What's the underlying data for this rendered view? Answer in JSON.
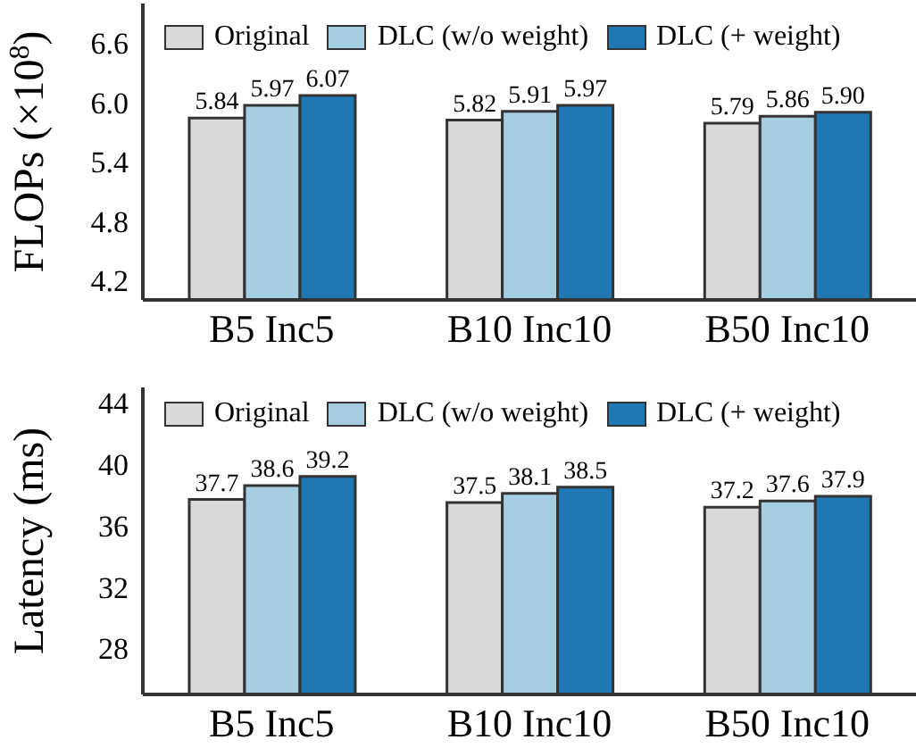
{
  "chart_data": [
    {
      "type": "bar",
      "ylabel": "FLOPs (×10$^{8}$)",
      "categories": [
        "B5 Inc5",
        "B10 Inc10",
        "B50 Inc10"
      ],
      "ylim": [
        4.0,
        7.0
      ],
      "yticks": [
        4.2,
        4.8,
        5.4,
        {
          "value": 6.0,
          "label": "6.0"
        },
        6.6
      ],
      "grid": false,
      "legend": "top",
      "series": [
        {
          "name": "Original",
          "color": "#d9d9d9",
          "values": [
            5.84,
            5.82,
            5.79
          ],
          "value_labels": [
            "5.84",
            "5.82",
            "5.79"
          ]
        },
        {
          "name": "DLC (w/o weight)",
          "color": "#a6cee3",
          "values": [
            5.97,
            5.91,
            5.86
          ],
          "value_labels": [
            "5.97",
            "5.91",
            "5.86"
          ]
        },
        {
          "name": "DLC (+ weight)",
          "color": "#1f78b4",
          "values": [
            6.07,
            5.97,
            5.9
          ],
          "value_labels": [
            "6.07",
            "5.97",
            "5.90"
          ]
        }
      ]
    },
    {
      "type": "bar",
      "ylabel": "Latency (ms)",
      "categories": [
        "B5 Inc5",
        "B10 Inc10",
        "B50 Inc10"
      ],
      "ylim": [
        25,
        45
      ],
      "yticks": [
        28,
        32,
        36,
        40,
        44
      ],
      "grid": false,
      "legend": "top",
      "series": [
        {
          "name": "Original",
          "color": "#d9d9d9",
          "values": [
            37.7,
            37.5,
            37.2
          ],
          "value_labels": [
            "37.7",
            "37.5",
            "37.2"
          ]
        },
        {
          "name": "DLC (w/o weight)",
          "color": "#a6cee3",
          "values": [
            38.6,
            38.1,
            37.6
          ],
          "value_labels": [
            "38.6",
            "38.1",
            "37.6"
          ]
        },
        {
          "name": "DLC (+ weight)",
          "color": "#1f78b4",
          "values": [
            39.2,
            38.5,
            37.9
          ],
          "value_labels": [
            "39.2",
            "38.5",
            "37.9"
          ]
        }
      ]
    }
  ]
}
